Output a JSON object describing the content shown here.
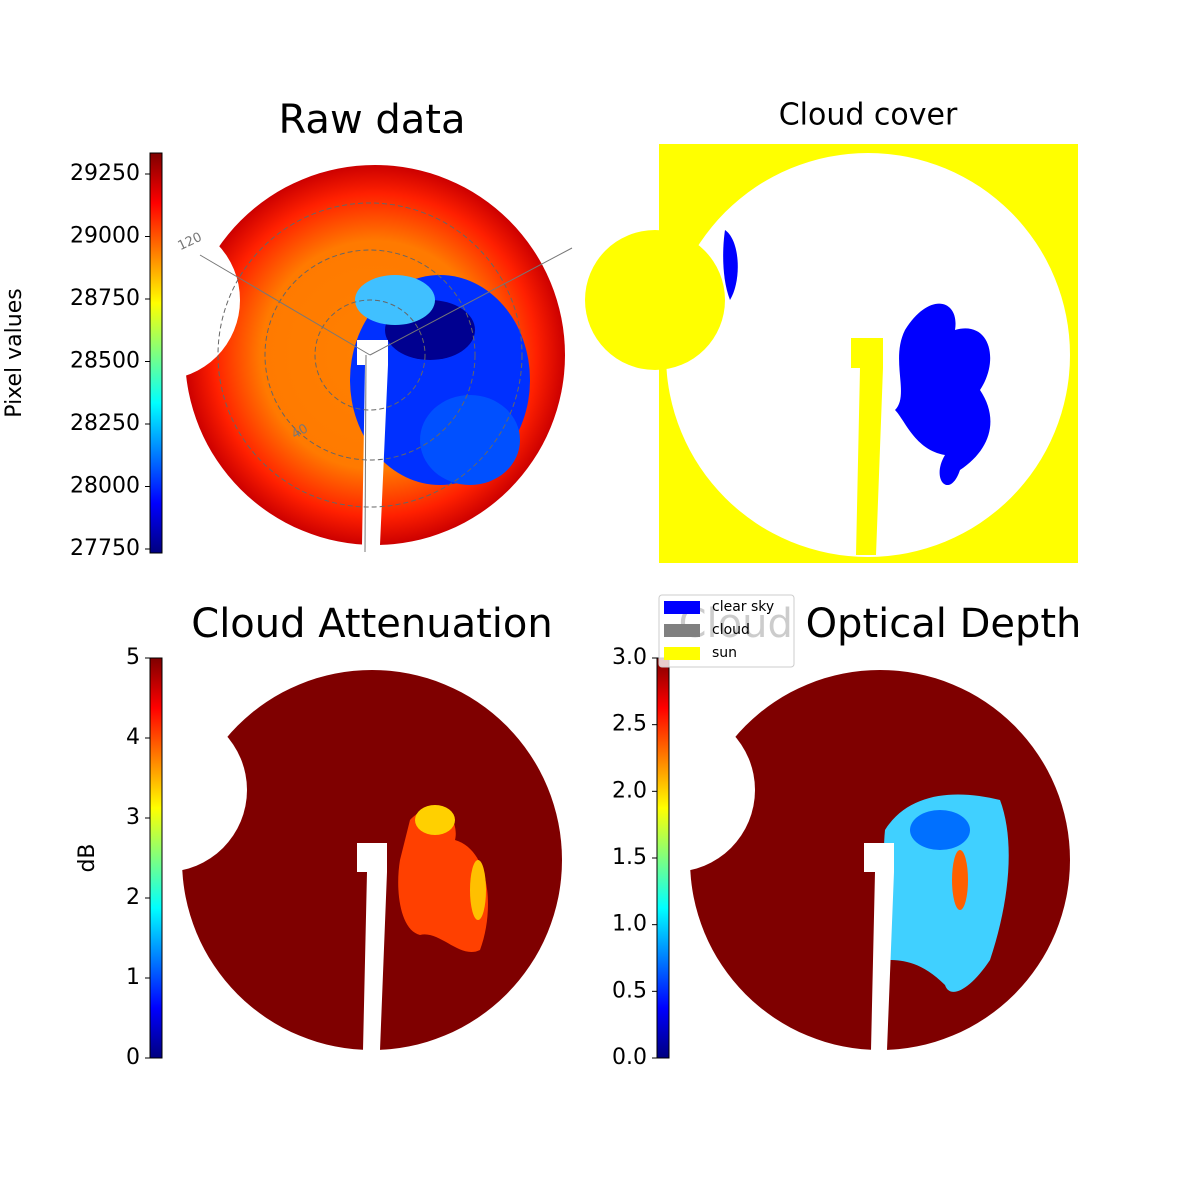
{
  "chart_data": [
    {
      "type": "image",
      "title": "Raw data",
      "colorbar_label": "Pixel values",
      "ylim": [
        27734,
        29334
      ],
      "yticks": [
        27750,
        28000,
        28250,
        28500,
        28750,
        29000,
        29250
      ],
      "colormap": "jet",
      "annotations": [
        "120",
        "40"
      ]
    },
    {
      "type": "image",
      "title": "Cloud cover",
      "legend": [
        {
          "name": "clear sky",
          "color": "#0000ff"
        },
        {
          "name": "cloud",
          "color": "#808080"
        },
        {
          "name": "sun",
          "color": "#ffff00"
        }
      ]
    },
    {
      "type": "image",
      "title": "Cloud Attenuation",
      "colorbar_label": "dB",
      "ylim": [
        0,
        5
      ],
      "yticks": [
        0,
        1,
        2,
        3,
        4,
        5
      ],
      "colormap": "jet"
    },
    {
      "type": "image",
      "title": "Cloud Optical Depth",
      "ylim": [
        0,
        3
      ],
      "yticks": [
        {
          "value": 0,
          "label": "0.0"
        },
        {
          "value": 0.5,
          "label": "0.5"
        },
        {
          "value": 1,
          "label": "1.0"
        },
        {
          "value": 1.5,
          "label": "1.5"
        },
        {
          "value": 2,
          "label": "2.0"
        },
        {
          "value": 2.5,
          "label": "2.5"
        },
        {
          "value": 3,
          "label": "3.0"
        }
      ],
      "colormap": "jet"
    }
  ]
}
